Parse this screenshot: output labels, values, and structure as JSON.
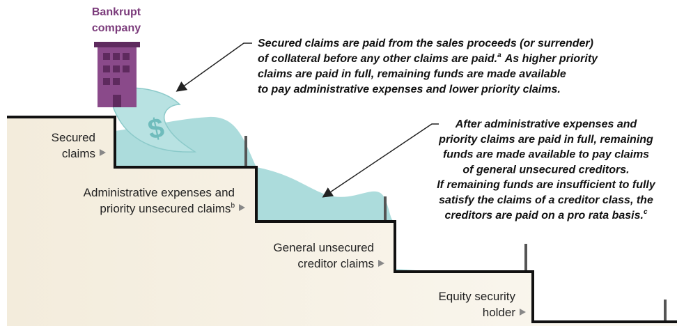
{
  "building": {
    "label_lines": [
      "Bankrupt",
      "company"
    ],
    "icon_symbol": "$"
  },
  "steps": [
    {
      "label_lines": [
        "Secured",
        "claims"
      ]
    },
    {
      "label_lines": [
        "Administrative expenses and",
        "priority unsecured claims"
      ],
      "footnote": "b"
    },
    {
      "label_lines": [
        "General unsecured",
        "creditor claims"
      ]
    },
    {
      "label_lines": [
        "Equity security",
        "holder"
      ]
    }
  ],
  "callouts": [
    {
      "lines": [
        "Secured claims are paid from the sales proceeds (or surrender)",
        "of collateral before any other claims are paid.",
        "claims are paid in full, remaining funds are made available",
        "to pay administrative expenses and lower priority claims."
      ],
      "footnote": "a",
      "footnote_after": "As higher priority"
    },
    {
      "lines": [
        "After administrative expenses and",
        "priority claims are paid in full, remaining",
        "funds are made available to pay claims",
        "of general unsecured creditors.",
        "If remaining funds are insufficient to fully",
        "satisfy the claims of a creditor class, the",
        "creditors are paid on a pro rata basis."
      ],
      "footnote": "c"
    }
  ]
}
